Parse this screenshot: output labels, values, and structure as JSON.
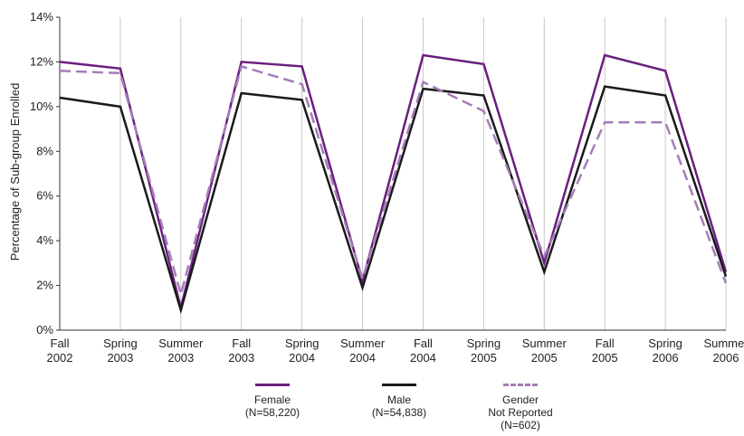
{
  "chart_data": {
    "type": "line",
    "title": "",
    "xlabel": "",
    "ylabel": "Percentage of Sub-group Enrolled",
    "ylim": [
      0,
      14
    ],
    "yticks": [
      "0%",
      "2%",
      "4%",
      "6%",
      "8%",
      "10%",
      "12%",
      "14%"
    ],
    "grid": "vertical",
    "legend_position": "bottom",
    "categories": [
      [
        "Fall",
        "2002"
      ],
      [
        "Spring",
        "2003"
      ],
      [
        "Summer",
        "2003"
      ],
      [
        "Fall",
        "2003"
      ],
      [
        "Spring",
        "2004"
      ],
      [
        "Summer",
        "2004"
      ],
      [
        "Fall",
        "2004"
      ],
      [
        "Spring",
        "2005"
      ],
      [
        "Summer",
        "2005"
      ],
      [
        "Fall",
        "2005"
      ],
      [
        "Spring",
        "2006"
      ],
      [
        "Summer",
        "2006"
      ]
    ],
    "series": [
      {
        "name": "Female\n(N=58,220)",
        "color": "#6a1f7e",
        "style": "solid",
        "values": [
          12.0,
          11.7,
          1.0,
          12.0,
          11.8,
          2.2,
          12.3,
          11.9,
          3.0,
          12.3,
          11.6,
          2.6
        ]
      },
      {
        "name": "Male\n(N=54,838)",
        "color": "#1a1a1a",
        "style": "solid",
        "values": [
          10.4,
          10.0,
          0.9,
          10.6,
          10.3,
          1.9,
          10.8,
          10.5,
          2.6,
          10.9,
          10.5,
          2.4
        ]
      },
      {
        "name": "Gender\nNot Reported\n(N=602)",
        "color": "#a57db8",
        "style": "dashed",
        "values": [
          11.6,
          11.5,
          1.6,
          11.8,
          11.0,
          2.3,
          11.1,
          9.8,
          3.3,
          9.3,
          9.3,
          2.1
        ]
      }
    ]
  }
}
